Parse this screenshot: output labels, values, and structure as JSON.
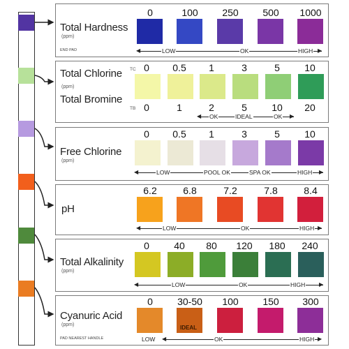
{
  "colors": {
    "hardness": [
      "#1f2aa6",
      "#3448c4",
      "#5a3aa8",
      "#7a36a6",
      "#8b2c98"
    ],
    "chlorine": [
      "#f4f7a8",
      "#eff19a",
      "#dbe98a",
      "#b9dd7e",
      "#8fce76",
      "#2f9c58"
    ],
    "free_chlorine": [
      "#f4f2cf",
      "#ece9d5",
      "#e6dfe6",
      "#c7a8dd",
      "#a57acb",
      "#7b3aa7"
    ],
    "ph": [
      "#f7a21c",
      "#ef7625",
      "#e84b23",
      "#e13432",
      "#d21f3c"
    ],
    "alkalinity": [
      "#d4c722",
      "#8cad27",
      "#4f9b3b",
      "#3b7f39",
      "#2b6e53",
      "#2a5f5b"
    ],
    "cyanuric": [
      "#e4892a",
      "#c95f16",
      "#cc1f3e",
      "#c41b6c",
      "#8d2e98"
    ],
    "strip_pads": [
      "#5234a2",
      "#b7e19a",
      "#b69ae0",
      "#f25f1c",
      "#4f8a3c",
      "#ea7c22"
    ]
  },
  "tests": [
    {
      "title": "Total Hardness",
      "unit": "(ppm)",
      "note": "END PAD",
      "values": [
        "0",
        "100",
        "250",
        "500",
        "1000"
      ],
      "scale": {
        "low": "LOW",
        "ok": "OK",
        "high": "HIGH"
      }
    },
    {
      "title": "Total Chlorine",
      "unit": "(ppm)",
      "title2": "Total Bromine",
      "tc_tag": "TC",
      "tb_tag": "TB",
      "values": [
        "0",
        "0.5",
        "1",
        "3",
        "5",
        "10"
      ],
      "values_tb": [
        "0",
        "1",
        "2",
        "5",
        "10",
        "20"
      ],
      "scale": {
        "ok": "OK",
        "ideal": "IDEAL",
        "ok2": "OK"
      }
    },
    {
      "title": "Free Chlorine",
      "unit": "(ppm)",
      "values": [
        "0",
        "0.5",
        "1",
        "3",
        "5",
        "10"
      ],
      "scale": {
        "low": "LOW",
        "pool_ok": "POOL OK",
        "spa_ok": "SPA OK",
        "high": "HIGH"
      }
    },
    {
      "title": "pH",
      "values": [
        "6.2",
        "6.8",
        "7.2",
        "7.8",
        "8.4"
      ],
      "scale": {
        "low": "LOW",
        "ok": "OK",
        "high": "HIGH"
      }
    },
    {
      "title": "Total Alkalinity",
      "unit": "(ppm)",
      "values": [
        "0",
        "40",
        "80",
        "120",
        "180",
        "240"
      ],
      "scale": {
        "low": "LOW",
        "ok": "OK",
        "high": "HIGH"
      }
    },
    {
      "title": "Cyanuric Acid",
      "unit": "(ppm)",
      "note": "PAD NEAREST HANDLE",
      "values": [
        "0",
        "30-50",
        "100",
        "150",
        "300"
      ],
      "ideal": "IDEAL",
      "scale": {
        "low": "LOW",
        "ok": "OK",
        "high": "HIGH"
      }
    }
  ]
}
